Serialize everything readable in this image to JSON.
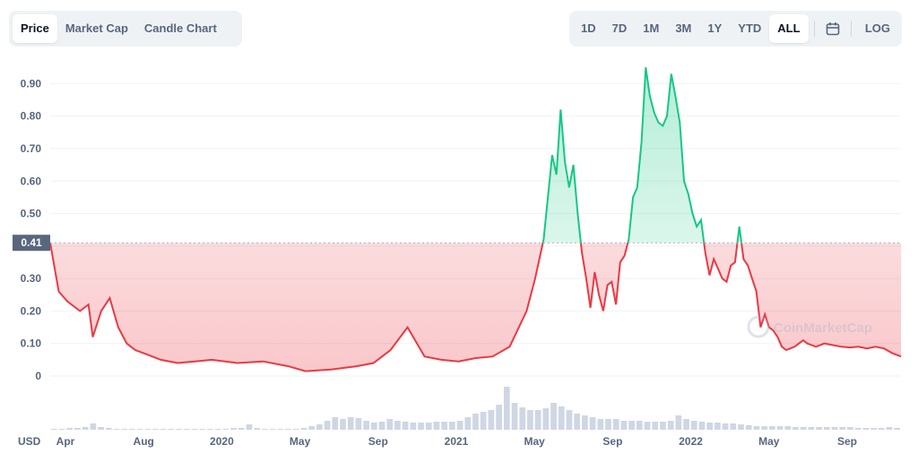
{
  "tabs": [
    {
      "label": "Price",
      "active": true
    },
    {
      "label": "Market Cap",
      "active": false
    },
    {
      "label": "Candle Chart",
      "active": false
    }
  ],
  "ranges": [
    {
      "label": "1D",
      "active": false
    },
    {
      "label": "7D",
      "active": false
    },
    {
      "label": "1M",
      "active": false
    },
    {
      "label": "3M",
      "active": false
    },
    {
      "label": "1Y",
      "active": false
    },
    {
      "label": "YTD",
      "active": false
    },
    {
      "label": "ALL",
      "active": true
    }
  ],
  "calendar_icon": "calendar-icon",
  "log_label": "LOG",
  "currency_label": "USD",
  "watermark": "CoinMarketCap",
  "colors": {
    "up": "#16c784",
    "down": "#ea3943",
    "grid": "#eff2f5",
    "baseline_label_bg": "#58667e"
  },
  "chart_data": {
    "type": "area",
    "baseline": 0.41,
    "baseline_label": "0.41",
    "y_ticks": [
      "0",
      "0.10",
      "0.20",
      "0.30",
      "0.40",
      "0.50",
      "0.60",
      "0.70",
      "0.80",
      "0.90"
    ],
    "ylim": [
      0,
      0.97
    ],
    "x_ticks": [
      "Apr",
      "Aug",
      "2020",
      "May",
      "Sep",
      "2021",
      "May",
      "Sep",
      "2022",
      "May",
      "Sep"
    ],
    "x": [
      0,
      0.01,
      0.02,
      0.035,
      0.045,
      0.05,
      0.06,
      0.07,
      0.08,
      0.09,
      0.1,
      0.11,
      0.12,
      0.13,
      0.15,
      0.17,
      0.19,
      0.22,
      0.25,
      0.28,
      0.3,
      0.33,
      0.36,
      0.38,
      0.4,
      0.42,
      0.44,
      0.46,
      0.48,
      0.49,
      0.5,
      0.52,
      0.54,
      0.56,
      0.57,
      0.58,
      0.59,
      0.595,
      0.6,
      0.605,
      0.61,
      0.615,
      0.62,
      0.625,
      0.63,
      0.635,
      0.64,
      0.645,
      0.65,
      0.655,
      0.66,
      0.665,
      0.67,
      0.675,
      0.68,
      0.685,
      0.69,
      0.695,
      0.7,
      0.705,
      0.71,
      0.715,
      0.72,
      0.725,
      0.73,
      0.735,
      0.74,
      0.745,
      0.75,
      0.755,
      0.76,
      0.765,
      0.77,
      0.775,
      0.78,
      0.785,
      0.79,
      0.795,
      0.8,
      0.805,
      0.81,
      0.815,
      0.82,
      0.825,
      0.83,
      0.835,
      0.84,
      0.845,
      0.85,
      0.855,
      0.86,
      0.865,
      0.87,
      0.875,
      0.88,
      0.885,
      0.89,
      0.895,
      0.9,
      0.91,
      0.92,
      0.93,
      0.94,
      0.95,
      0.96,
      0.97,
      0.98,
      0.99,
      1.0
    ],
    "values": [
      0.41,
      0.26,
      0.23,
      0.2,
      0.22,
      0.12,
      0.2,
      0.24,
      0.15,
      0.1,
      0.08,
      0.07,
      0.06,
      0.05,
      0.04,
      0.045,
      0.05,
      0.04,
      0.045,
      0.03,
      0.015,
      0.02,
      0.03,
      0.04,
      0.08,
      0.15,
      0.06,
      0.05,
      0.045,
      0.05,
      0.055,
      0.06,
      0.09,
      0.2,
      0.3,
      0.42,
      0.68,
      0.62,
      0.82,
      0.66,
      0.58,
      0.65,
      0.5,
      0.38,
      0.3,
      0.21,
      0.32,
      0.25,
      0.2,
      0.28,
      0.29,
      0.22,
      0.35,
      0.37,
      0.42,
      0.55,
      0.58,
      0.72,
      0.95,
      0.86,
      0.81,
      0.78,
      0.77,
      0.8,
      0.93,
      0.86,
      0.78,
      0.6,
      0.56,
      0.5,
      0.46,
      0.48,
      0.38,
      0.31,
      0.36,
      0.33,
      0.3,
      0.29,
      0.34,
      0.35,
      0.46,
      0.36,
      0.34,
      0.3,
      0.26,
      0.15,
      0.19,
      0.15,
      0.14,
      0.12,
      0.09,
      0.08,
      0.085,
      0.09,
      0.1,
      0.11,
      0.1,
      0.095,
      0.09,
      0.1,
      0.095,
      0.09,
      0.088,
      0.09,
      0.085,
      0.09,
      0.085,
      0.07,
      0.06
    ],
    "volume": [
      1,
      1,
      2,
      2,
      3,
      7,
      3,
      2,
      1,
      1,
      1,
      1,
      1,
      1,
      1,
      1,
      1,
      1,
      1,
      1,
      1,
      1,
      1,
      2,
      2,
      6,
      2,
      1,
      1,
      1,
      1,
      1,
      2,
      4,
      6,
      10,
      14,
      12,
      14,
      13,
      10,
      8,
      9,
      12,
      10,
      9,
      8,
      8,
      8,
      9,
      9,
      9,
      10,
      14,
      18,
      20,
      22,
      28,
      48,
      30,
      25,
      22,
      22,
      24,
      30,
      26,
      22,
      18,
      16,
      14,
      12,
      12,
      12,
      10,
      10,
      10,
      9,
      9,
      9,
      10,
      16,
      12,
      10,
      9,
      8,
      8,
      7,
      7,
      6,
      5,
      4,
      4,
      4,
      4,
      4,
      3,
      3,
      3,
      3,
      3,
      3,
      3,
      3,
      2,
      2,
      2,
      2,
      3,
      2
    ]
  }
}
